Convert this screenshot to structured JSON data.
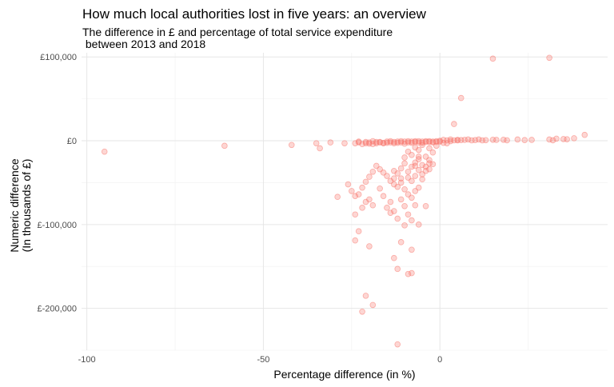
{
  "chart_data": {
    "type": "scatter",
    "title": "How much local authorities lost in five years: an overview",
    "subtitle": "The difference in £ and percentage of total service expenditure\n between 2013 and 2018",
    "xlabel": "Percentage difference (in %)",
    "ylabel": "Numeric difference\n(In thousands of £)",
    "xlim": [
      -101.5,
      47.5
    ],
    "ylim": [
      -250000,
      105000
    ],
    "x_ticks": [
      -100,
      -50,
      0
    ],
    "y_ticks": [
      100000,
      0,
      -100000,
      -200000
    ],
    "x_tick_labels": [
      "-100",
      "-50",
      "0"
    ],
    "y_tick_labels": [
      "£100,000",
      "£0",
      "£-100,000",
      "£-200,000"
    ],
    "grid": true,
    "point_color": "#F8766D",
    "points": [
      [
        -95,
        -13000
      ],
      [
        -61,
        -6000
      ],
      [
        -42,
        -5000
      ],
      [
        -35,
        -3000
      ],
      [
        -34,
        -9000
      ],
      [
        -31,
        -2000
      ],
      [
        -27,
        -3000
      ],
      [
        15,
        98000
      ],
      [
        31,
        99000
      ],
      [
        6,
        51000
      ],
      [
        4,
        20000
      ],
      [
        2,
        -3000
      ],
      [
        -24,
        -3000
      ],
      [
        -23,
        -2000
      ],
      [
        -22,
        -4000
      ],
      [
        -21,
        -3000
      ],
      [
        -20,
        -2000
      ],
      [
        -19,
        -4000
      ],
      [
        -18,
        -3000
      ],
      [
        -17,
        -2000
      ],
      [
        -16,
        -3000
      ],
      [
        -15,
        -1000
      ],
      [
        -14,
        -2000
      ],
      [
        -13,
        -3000
      ],
      [
        -12,
        -1000
      ],
      [
        -11,
        -2000
      ],
      [
        -10,
        -1000
      ],
      [
        -9,
        -2000
      ],
      [
        -8,
        -1000
      ],
      [
        -7,
        -1500
      ],
      [
        -6,
        -500
      ],
      [
        -5,
        -1000
      ],
      [
        -4,
        -1500
      ],
      [
        -3,
        -500
      ],
      [
        -2,
        -1000
      ],
      [
        -1,
        -500
      ],
      [
        0,
        0
      ],
      [
        1,
        1000
      ],
      [
        2,
        500
      ],
      [
        3,
        1500
      ],
      [
        4,
        500
      ],
      [
        5,
        1000
      ],
      [
        6,
        800
      ],
      [
        7,
        1000
      ],
      [
        9,
        500
      ],
      [
        11,
        1500
      ],
      [
        13,
        700
      ],
      [
        16,
        1000
      ],
      [
        18,
        1200
      ],
      [
        22,
        1500
      ],
      [
        26,
        1000
      ],
      [
        31,
        1500
      ],
      [
        33,
        2500
      ],
      [
        35,
        2000
      ],
      [
        38,
        3000
      ],
      [
        41,
        7000
      ],
      [
        -20,
        -3500
      ],
      [
        -18,
        -1500
      ],
      [
        -16,
        -2500
      ],
      [
        -14,
        -500
      ],
      [
        -12,
        -2500
      ],
      [
        -10,
        -3500
      ],
      [
        -8,
        -2500
      ],
      [
        -6,
        -2000
      ],
      [
        -4,
        -500
      ],
      [
        -2,
        -2000
      ],
      [
        0,
        -1000
      ],
      [
        1,
        -2500
      ],
      [
        3,
        -500
      ],
      [
        5,
        500
      ],
      [
        8,
        1500
      ],
      [
        10,
        800
      ],
      [
        12,
        500
      ],
      [
        15,
        1200
      ],
      [
        19,
        600
      ],
      [
        24,
        800
      ],
      [
        32,
        600
      ],
      [
        36,
        1800
      ],
      [
        -23,
        -1000
      ],
      [
        -21,
        -1500
      ],
      [
        -19,
        -500
      ],
      [
        -17,
        -1500
      ],
      [
        -15,
        -2500
      ],
      [
        -13,
        -1500
      ],
      [
        -11,
        -500
      ],
      [
        -9,
        -500
      ],
      [
        -7,
        -500
      ],
      [
        -5,
        -2500
      ],
      [
        -3,
        -1500
      ],
      [
        -1,
        -1500
      ],
      [
        -9,
        -13000
      ],
      [
        -7,
        -8000
      ],
      [
        -5,
        -5000
      ],
      [
        -3,
        -9000
      ],
      [
        -2,
        -14000
      ],
      [
        -1,
        -6000
      ],
      [
        -8,
        -17000
      ],
      [
        -6,
        -11000
      ],
      [
        -4,
        -19000
      ],
      [
        -3,
        -23000
      ],
      [
        -10,
        -20000
      ],
      [
        -7,
        -26000
      ],
      [
        -8,
        -31000
      ],
      [
        -5,
        -29000
      ],
      [
        -6,
        -35000
      ],
      [
        -9,
        -37000
      ],
      [
        -10,
        -27000
      ],
      [
        -11,
        -33000
      ],
      [
        -12,
        -39000
      ],
      [
        -13,
        -45000
      ],
      [
        -7,
        -42000
      ],
      [
        -8,
        -48000
      ],
      [
        -5,
        -40000
      ],
      [
        -4,
        -31000
      ],
      [
        -3,
        -27000
      ],
      [
        -6,
        -22000
      ],
      [
        -9,
        -44000
      ],
      [
        -11,
        -50000
      ],
      [
        -12,
        -55000
      ],
      [
        -10,
        -58000
      ],
      [
        -13,
        -52000
      ],
      [
        -14,
        -48000
      ],
      [
        -15,
        -42000
      ],
      [
        -16,
        -38000
      ],
      [
        -17,
        -34000
      ],
      [
        -18,
        -30000
      ],
      [
        -19,
        -37000
      ],
      [
        -20,
        -43000
      ],
      [
        -21,
        -49000
      ],
      [
        -22,
        -56000
      ],
      [
        -23,
        -64000
      ],
      [
        -24,
        -66000
      ],
      [
        -21,
        -73000
      ],
      [
        -20,
        -70000
      ],
      [
        -19,
        -77000
      ],
      [
        -22,
        -80000
      ],
      [
        -24,
        -88000
      ],
      [
        -26,
        -52000
      ],
      [
        -29,
        -67000
      ],
      [
        -25,
        -60000
      ],
      [
        -16,
        -66000
      ],
      [
        -15,
        -80000
      ],
      [
        -13,
        -84000
      ],
      [
        -12,
        -93000
      ],
      [
        -14,
        -86000
      ],
      [
        -10,
        -78000
      ],
      [
        -9,
        -64000
      ],
      [
        -8,
        -68000
      ],
      [
        -7,
        -60000
      ],
      [
        -6,
        -56000
      ],
      [
        -5,
        -46000
      ],
      [
        -4,
        -36000
      ],
      [
        -3,
        -34000
      ],
      [
        -2,
        -28000
      ],
      [
        -17,
        -57000
      ],
      [
        -11,
        -70000
      ],
      [
        -9,
        -88000
      ],
      [
        -7,
        -77000
      ],
      [
        -8,
        -95000
      ],
      [
        -10,
        -101000
      ],
      [
        -4,
        -78000
      ],
      [
        -6,
        -100000
      ],
      [
        -11,
        -45000
      ],
      [
        -6,
        -19000
      ],
      [
        -7,
        -30000
      ],
      [
        -13,
        -36000
      ],
      [
        -14,
        -73000
      ],
      [
        -24,
        -119000
      ],
      [
        -23,
        -108000
      ],
      [
        -20,
        -126000
      ],
      [
        -13,
        -140000
      ],
      [
        -11,
        -121000
      ],
      [
        -12,
        -153000
      ],
      [
        -9,
        -159000
      ],
      [
        -8,
        -158000
      ],
      [
        -8,
        -130000
      ],
      [
        -21,
        -185000
      ],
      [
        -19,
        -196000
      ],
      [
        -22,
        -204000
      ],
      [
        -12,
        -243000
      ]
    ]
  }
}
